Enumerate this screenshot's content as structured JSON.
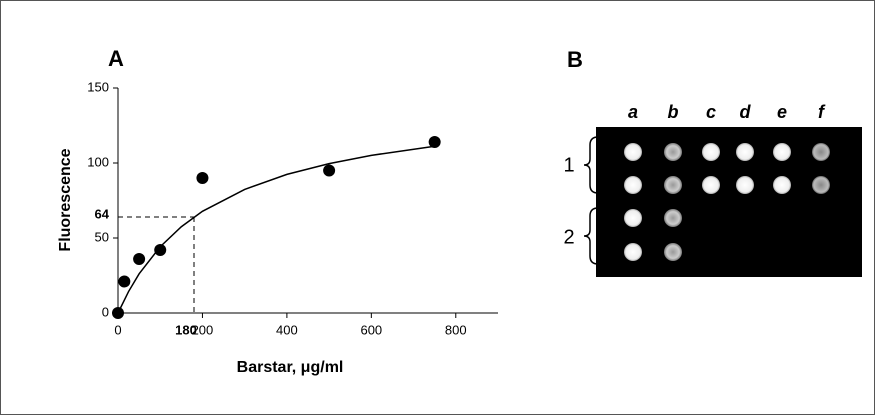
{
  "chart_data": {
    "type": "scatter",
    "panel_label": "A",
    "x_label": "Barstar, μg/ml",
    "y_label": "Fluorescence",
    "x": [
      0,
      15,
      50,
      100,
      200,
      500,
      750
    ],
    "values": [
      0,
      21,
      36,
      42,
      90,
      95,
      114
    ],
    "color": "#000000",
    "curve": {
      "x": [
        0,
        25,
        50,
        100,
        150,
        200,
        300,
        400,
        500,
        600,
        750
      ],
      "values": [
        0,
        14.3,
        26.1,
        44.2,
        57.5,
        67.8,
        82.4,
        92.4,
        99.6,
        105.1,
        111.2
      ]
    },
    "guide": {
      "x": 180,
      "y": 64
    },
    "xlim": [
      0,
      900
    ],
    "ylim": [
      0,
      150
    ],
    "xticks": [
      0,
      200,
      400,
      600,
      800
    ],
    "yticks": [
      0,
      50,
      100,
      150
    ]
  },
  "panel_b": {
    "label": "B",
    "columns": [
      "a",
      "b",
      "c",
      "d",
      "e",
      "f"
    ],
    "rows": [
      "1",
      "2"
    ]
  }
}
